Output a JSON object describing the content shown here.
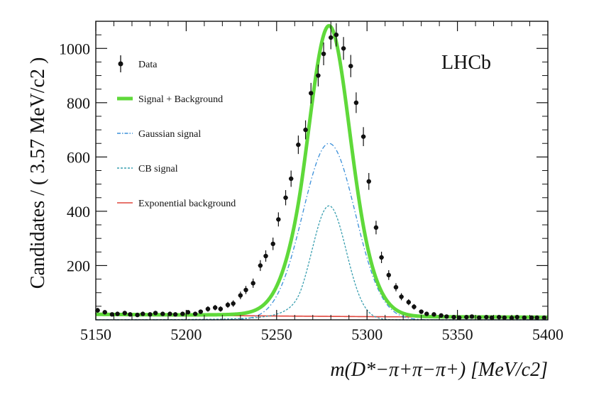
{
  "chart_data": {
    "type": "line",
    "xlabel": "m(D*−π+π−π+) [MeV/c2]",
    "ylabel": "Candidates / ( 3.57 MeV/c2 )",
    "xlim": [
      5150,
      5400
    ],
    "ylim": [
      0,
      1100
    ],
    "xticks": [
      5150,
      5200,
      5250,
      5300,
      5350,
      5400
    ],
    "yticks": [
      200,
      400,
      600,
      800,
      1000
    ],
    "experiment_label": "LHCb",
    "legend_position": "top-left",
    "grid": false,
    "legend": [
      {
        "key": "data",
        "label": "Data",
        "color": "#000000"
      },
      {
        "key": "total",
        "label": "Signal + Background",
        "color": "#5fd93a"
      },
      {
        "key": "gauss",
        "label": "Gaussian signal",
        "color": "#3a8fd9"
      },
      {
        "key": "cb",
        "label": "CB signal",
        "color": "#3a9fb0"
      },
      {
        "key": "exp",
        "label": "Exponential background",
        "color": "#e0463c"
      }
    ],
    "series": [
      {
        "name": "Data",
        "type": "points",
        "x": [
          5151,
          5155,
          5159,
          5162,
          5166,
          5169,
          5173,
          5176,
          5180,
          5183,
          5187,
          5191,
          5194,
          5198,
          5201,
          5205,
          5208,
          5212,
          5216,
          5219,
          5223,
          5226,
          5230,
          5233,
          5237,
          5241,
          5244,
          5248,
          5251,
          5255,
          5258,
          5262,
          5266,
          5269,
          5273,
          5276,
          5280,
          5283,
          5287,
          5291,
          5294,
          5298,
          5301,
          5305,
          5308,
          5312,
          5316,
          5319,
          5323,
          5326,
          5330,
          5333,
          5337,
          5341,
          5344,
          5348,
          5351,
          5355,
          5358,
          5362,
          5366,
          5369,
          5373,
          5376,
          5380,
          5383,
          5387,
          5391,
          5394,
          5398
        ],
        "y": [
          35,
          28,
          20,
          22,
          25,
          20,
          18,
          22,
          20,
          25,
          22,
          22,
          20,
          22,
          28,
          22,
          30,
          40,
          45,
          40,
          55,
          60,
          90,
          110,
          135,
          200,
          235,
          280,
          370,
          450,
          520,
          645,
          700,
          835,
          900,
          980,
          1040,
          1050,
          1000,
          935,
          800,
          675,
          510,
          340,
          230,
          165,
          120,
          85,
          65,
          48,
          30,
          22,
          20,
          16,
          12,
          10,
          8,
          10,
          12,
          8,
          10,
          8,
          10,
          8,
          7,
          10,
          8,
          8,
          8,
          8
        ],
        "yerr": [
          9,
          8,
          7,
          7,
          8,
          7,
          7,
          7,
          7,
          8,
          7,
          7,
          7,
          7,
          8,
          7,
          8,
          10,
          10,
          10,
          11,
          12,
          14,
          15,
          17,
          20,
          21,
          23,
          26,
          28,
          30,
          34,
          35,
          38,
          40,
          42,
          43,
          43,
          42,
          41,
          38,
          35,
          31,
          25,
          21,
          18,
          15,
          13,
          11,
          10,
          8,
          7,
          7,
          6,
          5,
          5,
          4,
          5,
          5,
          4,
          5,
          4,
          5,
          4,
          4,
          5,
          4,
          4,
          4,
          4
        ]
      },
      {
        "name": "Signal + Background",
        "model": "total",
        "mean": 5279,
        "sigma_core": 9.5,
        "sigma_gauss": 14.5,
        "amp_cb": 420,
        "amp_gauss": 650,
        "bkg_amp": 20,
        "bkg_slope": -0.0035
      },
      {
        "name": "Gaussian signal",
        "model": "gauss",
        "mean": 5279,
        "sigma": 14.5,
        "amplitude": 650
      },
      {
        "name": "CB signal",
        "model": "cb",
        "mean": 5279,
        "sigma": 9.5,
        "amplitude": 420
      },
      {
        "name": "Exponential background",
        "model": "exp",
        "amplitude": 20,
        "slope": -0.0035
      }
    ]
  }
}
